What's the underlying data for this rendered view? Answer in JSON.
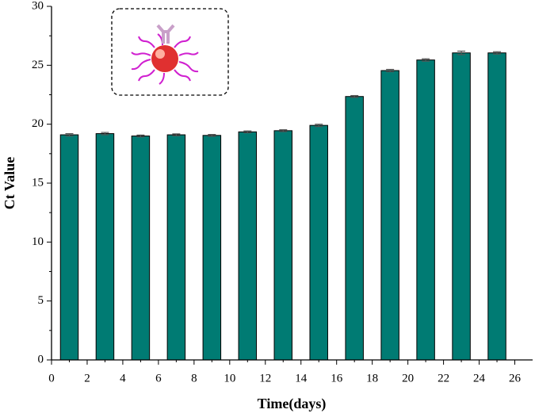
{
  "chart_data": {
    "type": "bar",
    "x_label": "Time(days)",
    "y_label": "Ct Value",
    "x": [
      1,
      3,
      5,
      7,
      9,
      11,
      13,
      15,
      17,
      19,
      21,
      23,
      25
    ],
    "values": [
      19.1,
      19.2,
      19.0,
      19.1,
      19.05,
      19.35,
      19.45,
      19.9,
      22.35,
      24.55,
      25.45,
      26.05,
      26.05
    ],
    "errors": [
      0.1,
      0.1,
      0.08,
      0.08,
      0.08,
      0.08,
      0.08,
      0.1,
      0.08,
      0.1,
      0.1,
      0.15,
      0.1
    ],
    "color": "#007b73",
    "xlim": [
      0,
      27
    ],
    "xticks": [
      0,
      2,
      4,
      6,
      8,
      10,
      12,
      14,
      16,
      18,
      20,
      22,
      24,
      26
    ],
    "ylim": [
      0,
      30
    ],
    "yticks": [
      0,
      5,
      10,
      15,
      20,
      25,
      30
    ]
  }
}
